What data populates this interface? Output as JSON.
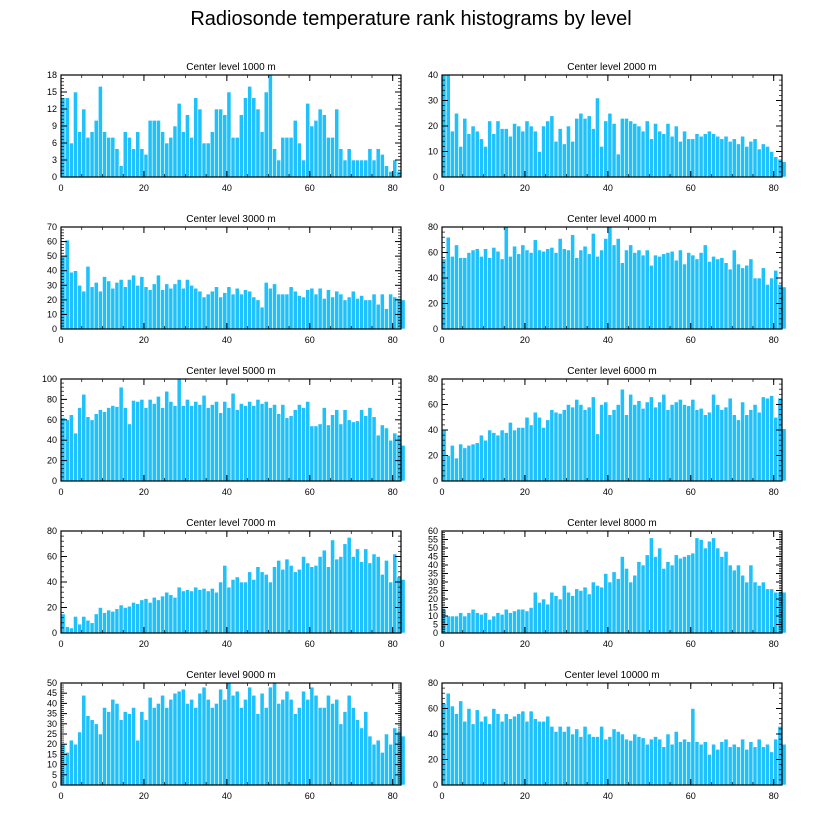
{
  "figure": {
    "title": "Radiosonde temperature rank histograms by level",
    "bar_color": "#1ec1fb",
    "bar_edge_color": "#ffffff",
    "axis_color": "#000000"
  },
  "chart_data": [
    {
      "type": "bar",
      "title": "Center level 1000 m",
      "xlim": [
        0,
        82
      ],
      "ylim": [
        0,
        18
      ],
      "yticks": [
        0,
        3,
        6,
        9,
        12,
        15,
        18
      ],
      "xticks": [
        0,
        20,
        40,
        60,
        80
      ],
      "values": [
        14,
        14,
        6,
        15,
        8,
        12,
        7,
        8,
        10,
        16,
        8,
        7,
        7,
        5,
        2,
        8,
        7,
        5,
        8,
        5,
        4,
        10,
        10,
        10,
        8,
        6,
        7,
        9,
        13,
        8,
        11,
        7,
        14,
        12,
        6,
        6,
        8,
        12,
        12,
        11,
        15,
        7,
        7,
        11,
        14,
        16,
        14,
        12,
        8,
        15,
        18,
        5,
        3,
        7,
        7,
        7,
        10,
        6,
        3,
        13,
        9,
        10,
        12,
        11,
        7,
        7,
        12,
        5,
        3,
        5,
        3,
        3,
        3,
        3,
        5,
        3,
        5,
        4,
        2,
        1,
        3,
        1,
        0
      ]
    },
    {
      "type": "bar",
      "title": "Center level 2000 m",
      "xlim": [
        0,
        82
      ],
      "ylim": [
        0,
        40
      ],
      "yticks": [
        0,
        10,
        20,
        30,
        40
      ],
      "xticks": [
        0,
        20,
        40,
        60,
        80
      ],
      "values": [
        40,
        40,
        18,
        25,
        12,
        23,
        17,
        20,
        18,
        15,
        12,
        22,
        17,
        22,
        19,
        19,
        16,
        21,
        20,
        18,
        22,
        20,
        18,
        10,
        20,
        22,
        24,
        14,
        19,
        13,
        20,
        14,
        23,
        25,
        23,
        24,
        19,
        31,
        12,
        22,
        25,
        21,
        9,
        23,
        23,
        22,
        21,
        20,
        18,
        22,
        15,
        21,
        18,
        17,
        21,
        16,
        20,
        14,
        18,
        15,
        15,
        17,
        16,
        17,
        18,
        17,
        16,
        15,
        16,
        14,
        15,
        13,
        16,
        12,
        14,
        15,
        11,
        13,
        12,
        10,
        8,
        7,
        6
      ]
    },
    {
      "type": "bar",
      "title": "Center level 3000 m",
      "xlim": [
        0,
        82
      ],
      "ylim": [
        0,
        70
      ],
      "yticks": [
        0,
        10,
        20,
        30,
        40,
        50,
        60,
        70
      ],
      "xticks": [
        0,
        20,
        40,
        60,
        80
      ],
      "values": [
        50,
        61,
        39,
        40,
        30,
        26,
        43,
        29,
        32,
        26,
        36,
        33,
        28,
        32,
        34,
        29,
        34,
        37,
        30,
        36,
        29,
        27,
        31,
        37,
        27,
        31,
        28,
        31,
        34,
        28,
        34,
        30,
        28,
        26,
        22,
        24,
        26,
        29,
        22,
        25,
        29,
        24,
        28,
        24,
        27,
        26,
        22,
        20,
        15,
        32,
        28,
        31,
        24,
        24,
        24,
        29,
        26,
        23,
        22,
        27,
        28,
        24,
        28,
        21,
        27,
        22,
        26,
        24,
        20,
        22,
        26,
        21,
        23,
        20,
        20,
        24,
        17,
        24,
        14,
        24,
        22,
        21,
        20
      ]
    },
    {
      "type": "bar",
      "title": "Center level 4000 m",
      "xlim": [
        0,
        82
      ],
      "ylim": [
        0,
        80
      ],
      "yticks": [
        0,
        20,
        40,
        60,
        80
      ],
      "xticks": [
        0,
        20,
        40,
        60,
        80
      ],
      "values": [
        55,
        72,
        57,
        66,
        56,
        56,
        60,
        62,
        63,
        57,
        63,
        56,
        64,
        61,
        55,
        80,
        57,
        65,
        59,
        66,
        62,
        60,
        70,
        62,
        61,
        63,
        64,
        60,
        71,
        63,
        62,
        74,
        56,
        62,
        65,
        59,
        75,
        57,
        62,
        71,
        80,
        66,
        71,
        52,
        62,
        66,
        60,
        62,
        58,
        62,
        50,
        58,
        57,
        59,
        60,
        61,
        54,
        62,
        51,
        60,
        58,
        55,
        60,
        66,
        53,
        57,
        55,
        56,
        52,
        47,
        62,
        51,
        48,
        50,
        55,
        40,
        40,
        48,
        35,
        40,
        46,
        35,
        33
      ]
    },
    {
      "type": "bar",
      "title": "Center level 5000 m",
      "xlim": [
        0,
        82
      ],
      "ylim": [
        0,
        100
      ],
      "yticks": [
        0,
        20,
        40,
        60,
        80,
        100
      ],
      "xticks": [
        0,
        20,
        40,
        60,
        80
      ],
      "values": [
        62,
        60,
        65,
        47,
        72,
        85,
        63,
        60,
        66,
        70,
        68,
        72,
        74,
        73,
        92,
        72,
        56,
        79,
        78,
        80,
        72,
        80,
        76,
        83,
        72,
        88,
        78,
        74,
        100,
        74,
        80,
        74,
        78,
        75,
        84,
        72,
        75,
        78,
        67,
        78,
        72,
        86,
        70,
        76,
        74,
        78,
        74,
        80,
        76,
        78,
        72,
        75,
        66,
        75,
        62,
        64,
        70,
        75,
        72,
        78,
        54,
        54,
        56,
        72,
        55,
        65,
        70,
        56,
        70,
        60,
        58,
        59,
        70,
        64,
        72,
        63,
        45,
        55,
        52,
        40,
        47,
        45,
        35
      ]
    },
    {
      "type": "bar",
      "title": "Center level 6000 m",
      "xlim": [
        0,
        82
      ],
      "ylim": [
        0,
        80
      ],
      "yticks": [
        0,
        20,
        40,
        60,
        80
      ],
      "xticks": [
        0,
        20,
        40,
        60,
        80
      ],
      "values": [
        40,
        20,
        28,
        18,
        29,
        26,
        28,
        29,
        30,
        36,
        32,
        40,
        38,
        36,
        40,
        38,
        46,
        40,
        42,
        42,
        50,
        44,
        54,
        50,
        42,
        48,
        56,
        54,
        53,
        56,
        60,
        58,
        64,
        60,
        56,
        58,
        66,
        37,
        60,
        62,
        52,
        56,
        60,
        72,
        52,
        68,
        60,
        63,
        57,
        62,
        66,
        58,
        62,
        68,
        56,
        60,
        62,
        64,
        60,
        59,
        64,
        56,
        57,
        52,
        54,
        68,
        60,
        56,
        58,
        65,
        52,
        48,
        62,
        52,
        56,
        60,
        54,
        66,
        65,
        67,
        50,
        65,
        41
      ]
    },
    {
      "type": "bar",
      "title": "Center level 7000 m",
      "xlim": [
        0,
        82
      ],
      "ylim": [
        0,
        80
      ],
      "yticks": [
        0,
        20,
        40,
        60,
        80
      ],
      "xticks": [
        0,
        20,
        40,
        60,
        80
      ],
      "values": [
        15,
        5,
        4,
        13,
        7,
        13,
        10,
        8,
        15,
        20,
        16,
        18,
        17,
        19,
        22,
        20,
        21,
        24,
        23,
        26,
        27,
        24,
        28,
        26,
        29,
        32,
        30,
        28,
        36,
        33,
        34,
        33,
        36,
        34,
        35,
        33,
        35,
        32,
        40,
        53,
        36,
        42,
        44,
        40,
        40,
        48,
        42,
        52,
        48,
        46,
        40,
        52,
        57,
        50,
        58,
        53,
        48,
        50,
        60,
        55,
        52,
        53,
        60,
        65,
        52,
        73,
        58,
        60,
        70,
        75,
        60,
        66,
        56,
        66,
        55,
        62,
        60,
        46,
        57,
        40,
        62,
        44,
        42
      ]
    },
    {
      "type": "bar",
      "title": "Center level 8000 m",
      "xlim": [
        0,
        82
      ],
      "ylim": [
        0,
        60
      ],
      "yticks": [
        0,
        5,
        10,
        15,
        20,
        25,
        30,
        35,
        40,
        45,
        50,
        55,
        60
      ],
      "xticks": [
        0,
        20,
        40,
        60,
        80
      ],
      "values": [
        14,
        10,
        10,
        10,
        12,
        10,
        12,
        14,
        12,
        11,
        12,
        8,
        10,
        12,
        11,
        14,
        12,
        13,
        14,
        14,
        13,
        15,
        24,
        18,
        20,
        17,
        24,
        22,
        20,
        28,
        24,
        22,
        26,
        25,
        27,
        23,
        30,
        28,
        27,
        35,
        30,
        36,
        32,
        45,
        38,
        30,
        34,
        42,
        40,
        46,
        56,
        45,
        50,
        38,
        42,
        40,
        46,
        44,
        45,
        46,
        47,
        56,
        55,
        50,
        54,
        56,
        50,
        45,
        48,
        40,
        37,
        40,
        34,
        30,
        40,
        30,
        28,
        30,
        26,
        26,
        24,
        24,
        24
      ]
    },
    {
      "type": "bar",
      "title": "Center level 9000 m",
      "xlim": [
        0,
        82
      ],
      "ylim": [
        0,
        50
      ],
      "yticks": [
        0,
        5,
        10,
        15,
        20,
        25,
        30,
        35,
        40,
        45,
        50
      ],
      "xticks": [
        0,
        20,
        40,
        60,
        80
      ],
      "values": [
        20,
        16,
        22,
        20,
        26,
        44,
        34,
        32,
        30,
        25,
        38,
        36,
        42,
        40,
        32,
        36,
        35,
        38,
        22,
        36,
        32,
        43,
        38,
        40,
        44,
        38,
        42,
        45,
        46,
        47,
        40,
        42,
        38,
        45,
        48,
        42,
        38,
        40,
        47,
        42,
        50,
        44,
        46,
        38,
        42,
        48,
        44,
        35,
        45,
        38,
        48,
        50,
        40,
        42,
        46,
        42,
        35,
        38,
        46,
        42,
        48,
        44,
        38,
        38,
        44,
        40,
        42,
        30,
        36,
        44,
        38,
        32,
        28,
        36,
        24,
        20,
        22,
        16,
        25,
        20,
        28,
        26,
        24
      ]
    },
    {
      "type": "bar",
      "title": "Center level 10000 m",
      "xlim": [
        0,
        82
      ],
      "ylim": [
        0,
        80
      ],
      "yticks": [
        0,
        20,
        40,
        60,
        80
      ],
      "xticks": [
        0,
        20,
        40,
        60,
        80
      ],
      "values": [
        64,
        72,
        62,
        56,
        66,
        50,
        60,
        48,
        59,
        50,
        54,
        48,
        60,
        56,
        50,
        56,
        52,
        54,
        56,
        58,
        50,
        58,
        52,
        50,
        50,
        54,
        46,
        42,
        46,
        42,
        46,
        40,
        44,
        38,
        46,
        40,
        38,
        38,
        46,
        36,
        38,
        44,
        42,
        40,
        36,
        35,
        40,
        38,
        37,
        32,
        36,
        38,
        36,
        30,
        40,
        32,
        42,
        34,
        36,
        34,
        60,
        34,
        32,
        34,
        24,
        32,
        28,
        34,
        36,
        30,
        32,
        30,
        36,
        28,
        34,
        30,
        36,
        30,
        32,
        26,
        36,
        46,
        32
      ]
    }
  ]
}
